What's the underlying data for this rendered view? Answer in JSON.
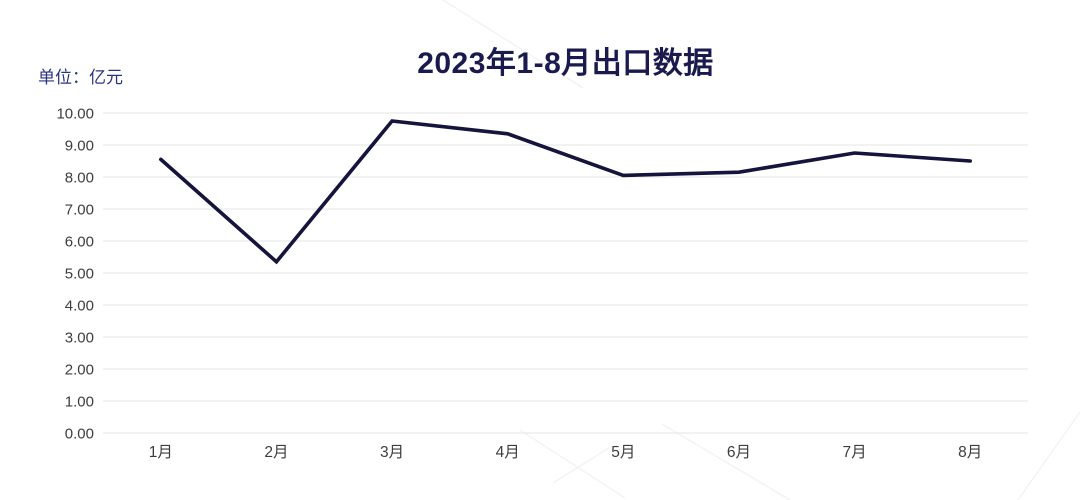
{
  "header": {
    "title": "2023年1-8月出口数据",
    "unit_label": "单位：亿元"
  },
  "chart_data": {
    "type": "line",
    "title": "2023年1-8月出口数据",
    "unit_label": "单位：亿元",
    "categories": [
      "1月",
      "2月",
      "3月",
      "4月",
      "5月",
      "6月",
      "7月",
      "8月"
    ],
    "series": [
      {
        "name": "出口",
        "values": [
          8.55,
          5.35,
          9.75,
          9.35,
          8.05,
          8.15,
          8.75,
          8.5
        ]
      }
    ],
    "xlabel": "",
    "ylabel": "",
    "ylim": [
      0,
      10
    ],
    "y_tick_step": 1,
    "y_tick_labels": [
      "0.00",
      "1.00",
      "2.00",
      "3.00",
      "4.00",
      "5.00",
      "6.00",
      "7.00",
      "8.00",
      "9.00",
      "10.00"
    ],
    "grid": "horizontal",
    "legend": "none",
    "colors": {
      "line": "#14143c",
      "title": "#1a1a4e",
      "unit_label": "#2a3380",
      "grid": "#ededed",
      "tick_label": "#3d3d3d"
    }
  }
}
